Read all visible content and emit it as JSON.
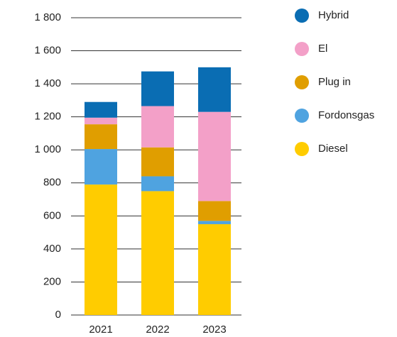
{
  "chart_data": {
    "type": "stacked_bar",
    "categories": [
      "2021",
      "2022",
      "2023"
    ],
    "series": [
      {
        "name": "Diesel",
        "color": "#ffcc00",
        "values": [
          790,
          750,
          550
        ]
      },
      {
        "name": "Fordonsgas",
        "color": "#4fa3e0",
        "values": [
          215,
          90,
          20
        ]
      },
      {
        "name": "Plug in",
        "color": "#e09e00",
        "values": [
          150,
          175,
          120
        ]
      },
      {
        "name": "El",
        "color": "#f3a0c8",
        "values": [
          40,
          250,
          540
        ]
      },
      {
        "name": "Hybrid",
        "color": "#0a6db3",
        "values": [
          95,
          210,
          270
        ]
      }
    ],
    "ylim": [
      0,
      1800
    ],
    "yticks": [
      0,
      200,
      400,
      600,
      800,
      {
        "value": 1000,
        "label": "1 000"
      },
      {
        "value": 1200,
        "label": "1 200"
      },
      {
        "value": 1400,
        "label": "1 400"
      },
      {
        "value": 1600,
        "label": "1 600"
      },
      {
        "value": 1800,
        "label": "1 800"
      }
    ],
    "grid": true,
    "legend": "right"
  }
}
